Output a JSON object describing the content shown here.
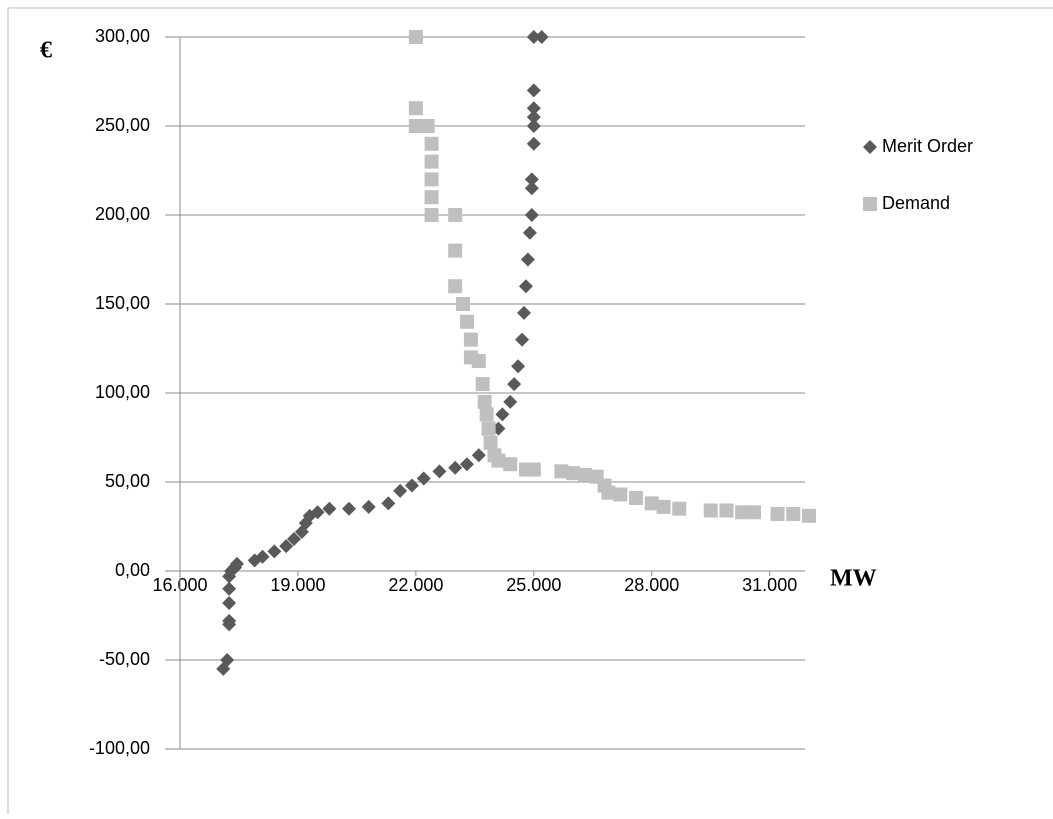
{
  "chart_data": {
    "type": "scatter",
    "ylabel": "€",
    "xlabel": "MW",
    "xlim": [
      16000,
      32000
    ],
    "ylim": [
      -100,
      300
    ],
    "xticks": [
      {
        "value": 16000,
        "label": "16.000"
      },
      {
        "value": 19000,
        "label": "19.000"
      },
      {
        "value": 22000,
        "label": "22.000"
      },
      {
        "value": 25000,
        "label": "25.000"
      },
      {
        "value": 28000,
        "label": "28.000"
      },
      {
        "value": 31000,
        "label": "31.000"
      }
    ],
    "yticks": [
      {
        "value": -100,
        "label": "-100,00"
      },
      {
        "value": -50,
        "label": "-50,00"
      },
      {
        "value": 0,
        "label": "0,00"
      },
      {
        "value": 50,
        "label": "50,00"
      },
      {
        "value": 100,
        "label": "100,00"
      },
      {
        "value": 150,
        "label": "150,00"
      },
      {
        "value": 200,
        "label": "200,00"
      },
      {
        "value": 250,
        "label": "250,00"
      },
      {
        "value": 300,
        "label": "300,00"
      }
    ],
    "grid": true,
    "legend": "right",
    "series": [
      {
        "name": "Merit Order",
        "color": "#595959",
        "marker": "diamond",
        "x": [
          17100,
          17200,
          17250,
          17250,
          17250,
          17250,
          17250,
          17300,
          17400,
          17450,
          17900,
          18100,
          18400,
          18700,
          18900,
          19100,
          19200,
          19300,
          19500,
          19800,
          20300,
          20800,
          21300,
          21600,
          21900,
          22200,
          22600,
          23000,
          23300,
          23600,
          23900,
          24100,
          24200,
          24400,
          24500,
          24600,
          24700,
          24750,
          24800,
          24850,
          24900,
          24950,
          24950,
          24950,
          25000,
          25000,
          25000,
          25000,
          25000,
          25000,
          25200
        ],
        "values": [
          -55,
          -50,
          -30,
          -28,
          -18,
          -10,
          -3,
          0,
          2,
          4,
          6,
          8,
          11,
          14,
          18,
          22,
          27,
          31,
          33,
          35,
          35,
          36,
          38,
          45,
          48,
          52,
          56,
          58,
          60,
          65,
          72,
          80,
          88,
          95,
          105,
          115,
          130,
          145,
          160,
          175,
          190,
          200,
          215,
          220,
          240,
          250,
          255,
          260,
          270,
          300,
          300
        ]
      },
      {
        "name": "Demand",
        "color": "#bfbfbf",
        "marker": "square",
        "x": [
          22000,
          22000,
          22000,
          22300,
          22400,
          22400,
          22400,
          22400,
          22400,
          23000,
          23000,
          23000,
          23200,
          23300,
          23400,
          23400,
          23600,
          23700,
          23750,
          23800,
          23850,
          23900,
          24000,
          24100,
          24400,
          24800,
          25000,
          25700,
          26000,
          26300,
          26600,
          26800,
          26900,
          27200,
          27600,
          28000,
          28300,
          28700,
          29500,
          29900,
          30300,
          30600,
          31200,
          31600,
          32000
        ],
        "values": [
          300,
          260,
          250,
          250,
          240,
          230,
          220,
          210,
          200,
          200,
          180,
          160,
          150,
          140,
          130,
          120,
          118,
          105,
          95,
          88,
          80,
          72,
          65,
          62,
          60,
          57,
          57,
          56,
          55,
          54,
          53,
          48,
          44,
          43,
          41,
          38,
          36,
          35,
          34,
          34,
          33,
          33,
          32,
          32,
          31
        ]
      }
    ]
  }
}
